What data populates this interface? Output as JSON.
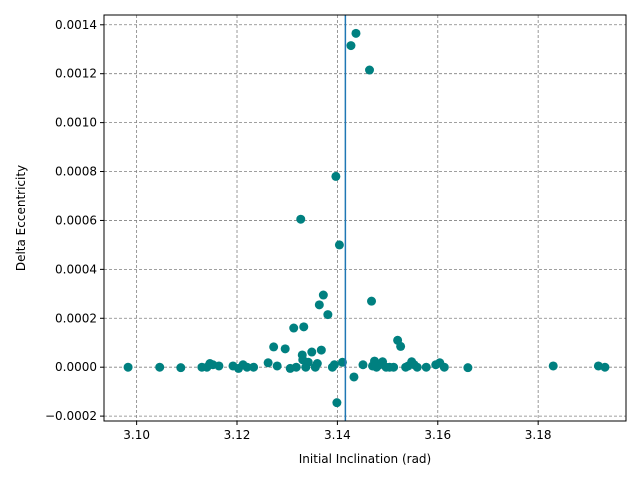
{
  "chart_data": {
    "type": "scatter",
    "title": "",
    "xlabel": "Initial Inclination (rad)",
    "ylabel": "Delta Eccentricity",
    "xlim": [
      3.0935,
      3.1975
    ],
    "ylim": [
      -0.00022,
      0.00144
    ],
    "xticks": [
      3.1,
      3.12,
      3.14,
      3.16,
      3.18
    ],
    "xtick_labels": [
      "3.10",
      "3.12",
      "3.14",
      "3.16",
      "3.18"
    ],
    "yticks": [
      -0.0002,
      0.0,
      0.0002,
      0.0004,
      0.0006,
      0.0008,
      0.001,
      0.0012,
      0.0014
    ],
    "ytick_labels": [
      "−0.0002",
      "0.0000",
      "0.0002",
      "0.0004",
      "0.0006",
      "0.0008",
      "0.0010",
      "0.0012",
      "0.0014"
    ],
    "grid": true,
    "legend": "none",
    "point_color": "#008080",
    "vline": {
      "x": 3.14159,
      "color": "#1f77b4"
    },
    "points": [
      [
        3.0983,
        0.0
      ],
      [
        3.1046,
        0.0
      ],
      [
        3.1088,
        -2e-06
      ],
      [
        3.113,
        0.0
      ],
      [
        3.114,
        0.0
      ],
      [
        3.1146,
        1.5e-05
      ],
      [
        3.1152,
        1e-05
      ],
      [
        3.1164,
        5e-06
      ],
      [
        3.1192,
        5e-06
      ],
      [
        3.1203,
        -5e-06
      ],
      [
        3.1212,
        1e-05
      ],
      [
        3.122,
        0.0
      ],
      [
        3.1233,
        0.0
      ],
      [
        3.1262,
        1.8e-05
      ],
      [
        3.1273,
        8.3e-05
      ],
      [
        3.128,
        5e-06
      ],
      [
        3.1296,
        7.5e-05
      ],
      [
        3.1306,
        -5e-06
      ],
      [
        3.1313,
        0.00016
      ],
      [
        3.1318,
        0.0
      ],
      [
        3.1327,
        0.000605
      ],
      [
        3.133,
        5e-05
      ],
      [
        3.1331,
        3e-05
      ],
      [
        3.1333,
        0.000165
      ],
      [
        3.1337,
        0.0
      ],
      [
        3.1342,
        2e-05
      ],
      [
        3.1349,
        6.2e-05
      ],
      [
        3.1356,
        0.0
      ],
      [
        3.136,
        1.5e-05
      ],
      [
        3.1364,
        0.000255
      ],
      [
        3.1368,
        7e-05
      ],
      [
        3.1372,
        0.000295
      ],
      [
        3.1381,
        0.000215
      ],
      [
        3.139,
        0.0
      ],
      [
        3.1394,
        1e-05
      ],
      [
        3.1397,
        0.00078
      ],
      [
        3.1399,
        -0.000145
      ],
      [
        3.1404,
        0.0005
      ],
      [
        3.141,
        2e-05
      ],
      [
        3.1427,
        0.001315
      ],
      [
        3.1433,
        -4e-05
      ],
      [
        3.1437,
        0.001365
      ],
      [
        3.1451,
        1e-05
      ],
      [
        3.1464,
        0.001215
      ],
      [
        3.1468,
        0.00027
      ],
      [
        3.147,
        5e-06
      ],
      [
        3.1474,
        2.5e-05
      ],
      [
        3.1478,
        0.0
      ],
      [
        3.1484,
        1e-05
      ],
      [
        3.149,
        2.2e-05
      ],
      [
        3.1497,
        0.0
      ],
      [
        3.1504,
        0.0
      ],
      [
        3.1512,
        0.0
      ],
      [
        3.152,
        0.00011
      ],
      [
        3.1526,
        8.5e-05
      ],
      [
        3.1536,
        0.0
      ],
      [
        3.1541,
        5e-06
      ],
      [
        3.1548,
        2.2e-05
      ],
      [
        3.1553,
        1e-05
      ],
      [
        3.1559,
        0.0
      ],
      [
        3.1577,
        0.0
      ],
      [
        3.1596,
        1e-05
      ],
      [
        3.1604,
        1.8e-05
      ],
      [
        3.1613,
        0.0
      ],
      [
        3.166,
        -2e-06
      ],
      [
        3.183,
        5e-06
      ],
      [
        3.192,
        5e-06
      ],
      [
        3.1933,
        0.0
      ]
    ]
  }
}
